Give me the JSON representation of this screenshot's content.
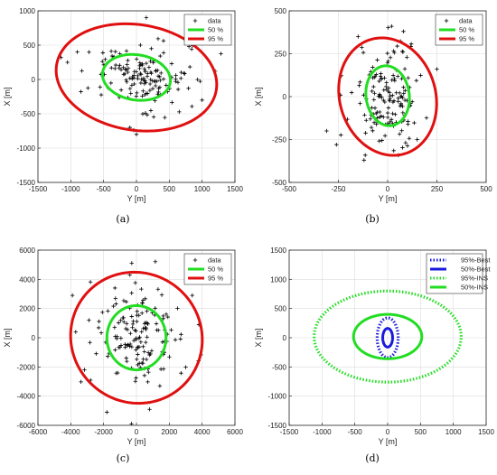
{
  "colors": {
    "data": "#000000",
    "p50": "#22dd22",
    "p95": "#e01010",
    "best": "#1a1adc",
    "ins": "#22dd22"
  },
  "chart_data": [
    {
      "type": "scatter",
      "caption": "(a)",
      "xlabel": "Y [m]",
      "ylabel": "X [m]",
      "xlim": [
        -1500,
        1500
      ],
      "ylim": [
        -1500,
        1000
      ],
      "xticks": [
        -1500,
        -1000,
        -500,
        0,
        500,
        1000,
        1500
      ],
      "yticks": [
        -1500,
        -1000,
        -500,
        0,
        500,
        1000
      ],
      "grid": true,
      "legend_position": "top-right",
      "series": [
        {
          "name": "data",
          "kind": "points",
          "spread": [
            420,
            260
          ],
          "center": [
            0,
            30
          ],
          "n": 150,
          "extra": [
            [
              -1150,
              320
            ],
            [
              1200,
              120
            ],
            [
              -900,
              400
            ],
            [
              150,
              900
            ],
            [
              1000,
              -300
            ],
            [
              -100,
              -700
            ],
            [
              0,
              -800
            ],
            [
              -1050,
              250
            ],
            [
              800,
              480
            ]
          ]
        },
        {
          "name": "50 %",
          "kind": "ellipse",
          "center": [
            0,
            30
          ],
          "rx": 520,
          "ry": 330,
          "angle": -8,
          "style": "solid",
          "color": "#22dd22"
        },
        {
          "name": "95 %",
          "kind": "ellipse",
          "center": [
            0,
            30
          ],
          "rx": 1230,
          "ry": 770,
          "angle": -8,
          "style": "solid",
          "color": "#e01010"
        }
      ]
    },
    {
      "type": "scatter",
      "caption": "(b)",
      "xlabel": "Y [m]",
      "ylabel": "X [m]",
      "xlim": [
        -500,
        500
      ],
      "ylim": [
        -500,
        500
      ],
      "xticks": [
        -500,
        -250,
        0,
        250,
        500
      ],
      "yticks": [
        -500,
        -250,
        0,
        250,
        500
      ],
      "grid": true,
      "legend_position": "top-right",
      "series": [
        {
          "name": "data",
          "kind": "points",
          "spread": [
            85,
            140
          ],
          "center": [
            0,
            0
          ],
          "n": 150,
          "extra": [
            [
              -310,
              -200
            ],
            [
              250,
              160
            ],
            [
              -150,
              350
            ],
            [
              20,
              410
            ],
            [
              -120,
              -370
            ],
            [
              80,
              380
            ],
            [
              150,
              -250
            ],
            [
              -260,
              -280
            ]
          ]
        },
        {
          "name": "50 %",
          "kind": "ellipse",
          "center": [
            0,
            5
          ],
          "rx": 110,
          "ry": 175,
          "angle": 5,
          "style": "solid",
          "color": "#22dd22"
        },
        {
          "name": "95 %",
          "kind": "ellipse",
          "center": [
            0,
            0
          ],
          "rx": 245,
          "ry": 345,
          "angle": 10,
          "style": "solid",
          "color": "#e01010"
        }
      ]
    },
    {
      "type": "scatter",
      "caption": "(c)",
      "xlabel": "Y [m]",
      "ylabel": "X [m]",
      "xlim": [
        -6000,
        6000
      ],
      "ylim": [
        -6000,
        6000
      ],
      "xticks": [
        -6000,
        -4000,
        -2000,
        0,
        2000,
        4000,
        6000
      ],
      "yticks": [
        -6000,
        -4000,
        -2000,
        0,
        2000,
        4000,
        6000
      ],
      "grid": true,
      "legend_position": "top-right",
      "series": [
        {
          "name": "data",
          "kind": "points",
          "spread": [
            1300,
            1700
          ],
          "center": [
            0,
            0
          ],
          "n": 150,
          "extra": [
            [
              -3900,
              2900
            ],
            [
              -3700,
              400
            ],
            [
              3800,
              900
            ],
            [
              -1800,
              -5100
            ],
            [
              -400,
              4300
            ],
            [
              800,
              -4900
            ],
            [
              3400,
              2900
            ],
            [
              -300,
              -5900
            ]
          ]
        },
        {
          "name": "50 %",
          "kind": "ellipse",
          "center": [
            0,
            0
          ],
          "rx": 1800,
          "ry": 2200,
          "angle": 0,
          "style": "solid",
          "color": "#22dd22"
        },
        {
          "name": "95 %",
          "kind": "ellipse",
          "center": [
            0,
            0
          ],
          "rx": 4000,
          "ry": 4500,
          "angle": 8,
          "style": "solid",
          "color": "#e01010"
        }
      ]
    },
    {
      "type": "line",
      "caption": "(d)",
      "xlabel": "Y [m]",
      "ylabel": "X [m]",
      "xlim": [
        -1500,
        1500
      ],
      "ylim": [
        -1500,
        1500
      ],
      "xticks": [
        -1500,
        -1000,
        -500,
        0,
        500,
        1000,
        1500
      ],
      "yticks": [
        -1500,
        -1000,
        -500,
        0,
        500,
        1000,
        1500
      ],
      "grid": true,
      "legend_position": "top-right",
      "series": [
        {
          "name": "95%-Best",
          "kind": "ellipse",
          "center": [
            0,
            0
          ],
          "rx": 160,
          "ry": 340,
          "angle": 0,
          "style": "dotted",
          "color": "#1a1adc"
        },
        {
          "name": "50%-Best",
          "kind": "ellipse",
          "center": [
            0,
            0
          ],
          "rx": 75,
          "ry": 160,
          "angle": 0,
          "style": "solid",
          "color": "#1a1adc"
        },
        {
          "name": "95%-INS",
          "kind": "ellipse",
          "center": [
            0,
            20
          ],
          "rx": 1120,
          "ry": 780,
          "angle": 0,
          "style": "dotted",
          "color": "#22dd22"
        },
        {
          "name": "50%-INS",
          "kind": "ellipse",
          "center": [
            0,
            20
          ],
          "rx": 520,
          "ry": 380,
          "angle": 0,
          "style": "solid",
          "color": "#22dd22"
        }
      ]
    }
  ]
}
